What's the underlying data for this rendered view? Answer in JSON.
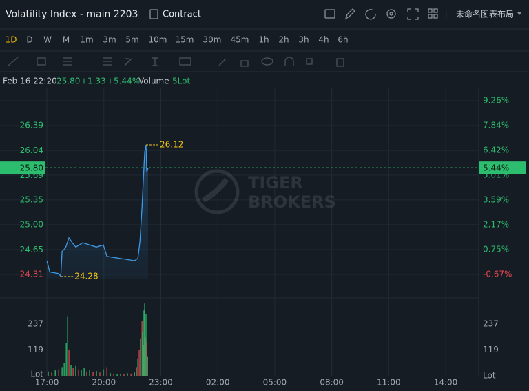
{
  "header": {
    "title": "Volatility Index - main 2203",
    "contract": "Contract",
    "layout": "未命名图表布局"
  },
  "intervals": [
    "1D",
    "D",
    "W",
    "M",
    "1m",
    "3m",
    "5m",
    "10m",
    "15m",
    "30m",
    "45m",
    "1h",
    "2h",
    "3h",
    "4h",
    "6h"
  ],
  "legend": {
    "date": "Feb 16 22:20",
    "last": "25.80",
    "change": "+1.33",
    "change_pct": "+5.44%",
    "volume": "Volume",
    "unit": "5Lot"
  },
  "chart_data": {
    "type": "line",
    "color": "#3d9be9",
    "up_color": "#2dbd6e",
    "down_color": "#e0474c",
    "marker_color": "#f0c419",
    "watermark": [
      "TIGER",
      "BROKERS"
    ],
    "x": [
      17.0,
      17.15,
      17.62,
      17.73,
      17.8,
      17.98,
      18.16,
      18.34,
      18.52,
      18.89,
      19.25,
      19.61,
      19.97,
      20.16,
      20.88,
      21.61,
      21.79,
      21.9,
      22.01,
      22.08,
      22.15,
      22.22,
      22.26,
      22.33
    ],
    "values": [
      24.5,
      24.34,
      24.32,
      24.28,
      24.63,
      24.68,
      24.82,
      24.75,
      24.69,
      24.75,
      24.72,
      24.69,
      24.72,
      24.56,
      24.53,
      24.5,
      24.53,
      24.77,
      25.25,
      25.64,
      26.02,
      26.12,
      25.74,
      25.8
    ],
    "high": 26.12,
    "low": 24.28,
    "last": {
      "value": 25.8,
      "label": "25.80"
    },
    "last_pct": {
      "value": 5.44,
      "label": "5.44%"
    },
    "xlim": [
      14.53,
      39.74
    ],
    "xticks": [
      {
        "value": 17,
        "label": "17:00"
      },
      {
        "value": 20,
        "label": "20:00"
      },
      {
        "value": 23,
        "label": "23:00"
      },
      {
        "value": 26,
        "label": "02:00"
      },
      {
        "value": 29,
        "label": "05:00"
      },
      {
        "value": 32,
        "label": "08:00"
      },
      {
        "value": 35,
        "label": "11:00"
      },
      {
        "value": 38,
        "label": "14:00"
      }
    ],
    "ylim": [
      23.98,
      26.91
    ],
    "yticks": [
      26.39,
      26.04,
      25.69,
      25.35,
      {
        "value": 25,
        "label": "25.00"
      },
      24.65,
      24.31
    ],
    "y2lim": [
      -2.01,
      9.97
    ],
    "y2ticks": [
      {
        "value": 9.26,
        "label": "9.26%"
      },
      {
        "value": 7.84,
        "label": "7.84%"
      },
      {
        "value": 6.42,
        "label": "6.42%"
      },
      {
        "value": 5.01,
        "label": "5.01%"
      },
      {
        "value": 3.59,
        "label": "3.59%"
      },
      {
        "value": 2.17,
        "label": "2.17%"
      },
      {
        "value": 0.75,
        "label": "0.75%"
      },
      {
        "value": -0.67,
        "label": "-0.67%"
      }
    ],
    "grid": true,
    "volume": {
      "ylim": [
        0,
        358
      ],
      "yticks": [
        119,
        237
      ],
      "unit": "Lot",
      "x": [
        17.07,
        17.25,
        17.44,
        17.62,
        17.8,
        17.91,
        18.02,
        18.09,
        18.16,
        18.27,
        18.38,
        18.52,
        18.67,
        18.81,
        18.96,
        19.1,
        19.25,
        19.43,
        19.61,
        19.79,
        19.97,
        20.16,
        20.34,
        20.52,
        20.7,
        20.88,
        21.06,
        21.24,
        21.43,
        21.61,
        21.72,
        21.79,
        21.86,
        21.93,
        22.01,
        22.04,
        22.08,
        22.11,
        22.15,
        22.19,
        22.22,
        22.26,
        22.3
      ],
      "values": [
        20,
        15,
        25,
        30,
        40,
        60,
        150,
        274,
        120,
        50,
        35,
        45,
        30,
        25,
        35,
        20,
        28,
        18,
        22,
        15,
        30,
        40,
        12,
        10,
        8,
        10,
        8,
        12,
        10,
        15,
        40,
        80,
        120,
        172,
        252,
        200,
        140,
        300,
        332,
        180,
        284,
        150,
        90
      ],
      "up": [
        true,
        false,
        true,
        false,
        true,
        true,
        true,
        true,
        false,
        true,
        false,
        true,
        false,
        true,
        true,
        false,
        true,
        false,
        true,
        false,
        true,
        false,
        true,
        false,
        true,
        true,
        false,
        true,
        false,
        true,
        false,
        true,
        false,
        true,
        false,
        true,
        true,
        true,
        true,
        false,
        true,
        false,
        true
      ]
    }
  }
}
